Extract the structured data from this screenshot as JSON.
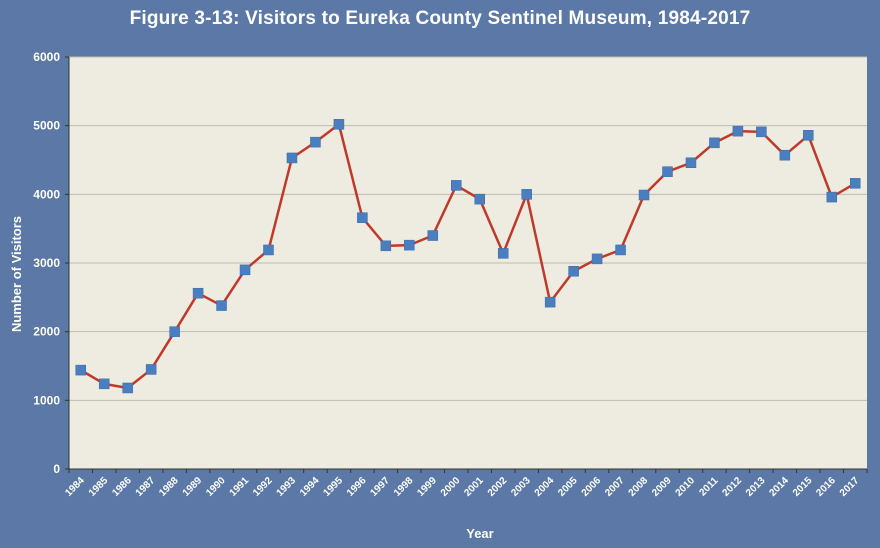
{
  "chart_data": {
    "type": "line",
    "title": "Figure 3-13: Visitors to Eureka County Sentinel Museum, 1984-2017",
    "xlabel": "Year",
    "ylabel": "Number of Visitors",
    "categories": [
      "1984",
      "1985",
      "1986",
      "1987",
      "1988",
      "1989",
      "1990",
      "1991",
      "1992",
      "1993",
      "1994",
      "1995",
      "1996",
      "1997",
      "1998",
      "1999",
      "2000",
      "2001",
      "2002",
      "2003",
      "2004",
      "2005",
      "2006",
      "2007",
      "2008",
      "2009",
      "2010",
      "2011",
      "2012",
      "2013",
      "2014",
      "2015",
      "2016",
      "2017"
    ],
    "series": [
      {
        "name": "",
        "values": [
          1440,
          1240,
          1180,
          1450,
          2000,
          2560,
          2380,
          2900,
          3190,
          4530,
          4760,
          5020,
          3660,
          3250,
          3260,
          3400,
          4130,
          3930,
          3140,
          4000,
          2430,
          2880,
          3060,
          3190,
          3990,
          4330,
          4460,
          4750,
          4920,
          4910,
          4570,
          4860,
          3960,
          4160
        ],
        "color": "#c0392b",
        "marker_color": "#4a7ebf"
      }
    ],
    "ylim": [
      0,
      6000
    ],
    "yticks": [
      "0",
      "1000",
      "2000",
      "3000",
      "4000",
      "5000",
      "6000"
    ],
    "grid": true,
    "plot_background": "#eeebe0",
    "legend": "none"
  }
}
